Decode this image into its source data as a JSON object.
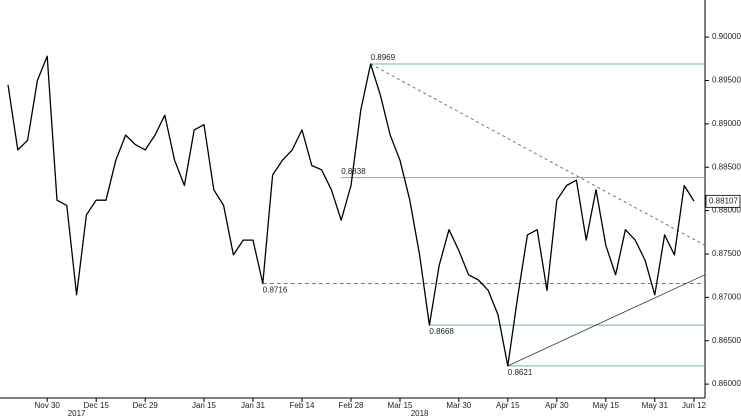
{
  "chart_data": {
    "type": "line",
    "categories": [
      null,
      null,
      null,
      null,
      "Nov 30",
      null,
      null,
      null,
      null,
      "Dec 15",
      null,
      null,
      null,
      null,
      "Dec 29",
      null,
      null,
      null,
      null,
      null,
      "Jan 15",
      null,
      null,
      null,
      null,
      "Jan 31",
      null,
      null,
      null,
      null,
      "Feb 14",
      null,
      null,
      null,
      null,
      "Feb 28",
      null,
      null,
      null,
      null,
      "Mar 15",
      null,
      null,
      null,
      null,
      null,
      "Mar 30",
      null,
      null,
      null,
      null,
      "Apr 15",
      null,
      null,
      null,
      null,
      "Apr 30",
      null,
      null,
      null,
      null,
      "May 15",
      null,
      null,
      null,
      null,
      "May 31",
      null,
      null,
      null,
      "Jun 12"
    ],
    "year_categories": [
      null,
      null,
      null,
      null,
      null,
      null,
      null,
      "2017",
      null,
      null,
      null,
      null,
      null,
      null,
      null,
      null,
      null,
      null,
      null,
      null,
      null,
      null,
      null,
      null,
      null,
      null,
      null,
      null,
      null,
      null,
      null,
      null,
      null,
      null,
      null,
      null,
      null,
      null,
      null,
      null,
      null,
      null,
      "2018",
      null,
      null,
      null,
      null,
      null,
      null,
      null,
      null,
      null,
      null,
      null,
      null,
      null,
      null,
      null,
      null,
      null,
      null,
      null,
      null,
      null,
      null,
      null,
      null,
      null,
      null,
      null,
      null
    ],
    "values": [
      0.8945,
      0.887,
      0.8881,
      0.895,
      0.8978,
      0.8812,
      0.8806,
      0.8703,
      0.8795,
      0.8812,
      0.8812,
      0.8858,
      0.8887,
      0.8876,
      0.887,
      0.8887,
      0.891,
      0.8858,
      0.8829,
      0.8893,
      0.8899,
      0.8824,
      0.8806,
      0.8749,
      0.8766,
      0.8766,
      0.8716,
      0.8841,
      0.8858,
      0.887,
      0.8893,
      0.8852,
      0.8847,
      0.8824,
      0.8789,
      0.8829,
      0.8916,
      0.8969,
      0.8933,
      0.8887,
      0.8858,
      0.8812,
      0.8749,
      0.8668,
      0.8737,
      0.8778,
      0.8754,
      0.8726,
      0.872,
      0.8708,
      0.868,
      0.8621,
      0.87,
      0.8772,
      0.8778,
      0.8708,
      0.8812,
      0.8829,
      0.8835,
      0.8766,
      0.8824,
      0.876,
      0.8726,
      0.8778,
      0.8766,
      0.8743,
      0.8703,
      0.8772,
      0.8749,
      0.8829,
      0.8811
    ],
    "color": "#000000",
    "ylim": [
      0.8584,
      0.9037
    ],
    "yticks": [
      {
        "value": 0.86,
        "label": "0.86000"
      },
      {
        "value": 0.865,
        "label": "0.86500"
      },
      {
        "value": 0.87,
        "label": "0.87000"
      },
      {
        "value": 0.875,
        "label": "0.87500"
      },
      {
        "value": 0.88,
        "label": "0.88000"
      },
      {
        "value": 0.885,
        "label": "0.88500"
      },
      {
        "value": 0.89,
        "label": "0.89000"
      },
      {
        "value": 0.895,
        "label": "0.89500"
      },
      {
        "value": 0.9,
        "label": "0.90000"
      }
    ],
    "last_value": 0.88107,
    "levels": [
      {
        "value": 0.8969,
        "from": 37,
        "style": "solid",
        "label_position": "above",
        "color": "#6fb8a6"
      },
      {
        "value": 0.8838,
        "from": 34,
        "style": "solid",
        "label_position": "above",
        "color": "#6fb8a6"
      },
      {
        "value": 0.8716,
        "from": 26,
        "style": "dashed",
        "label_position": "below",
        "color": "#3a9a80"
      },
      {
        "value": 0.8668,
        "from": 43,
        "style": "solid",
        "label_position": "below",
        "color": "#6fb8a6"
      },
      {
        "value": 0.8621,
        "from": 51,
        "style": "solid",
        "label_position": "below",
        "color": "#6fb8a6"
      }
    ],
    "trendlines": [
      {
        "x": [
          37,
          71.1
        ],
        "y": [
          0.8969,
          0.876
        ],
        "style": "dashed",
        "color": "#555555"
      },
      {
        "x": [
          51,
          71.1
        ],
        "y": [
          0.8621,
          0.8726
        ],
        "style": "solid",
        "color": "#333333"
      }
    ]
  }
}
